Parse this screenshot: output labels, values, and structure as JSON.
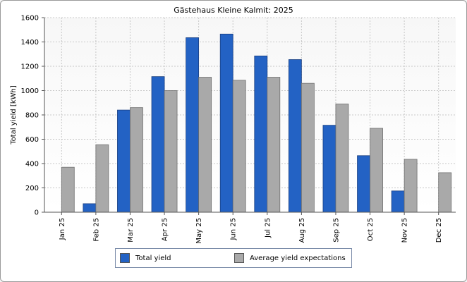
{
  "chart_data": {
    "type": "bar",
    "title": "Gästehaus Kleine Kalmit: 2025",
    "ylabel": "Total yield [kWh]",
    "xlabel": "",
    "ylim": [
      0,
      1600
    ],
    "yticks": [
      0,
      200,
      400,
      600,
      800,
      1000,
      1200,
      1400,
      1600
    ],
    "grid": true,
    "legend_position": "bottom",
    "categories": [
      "Jan 25",
      "Feb 25",
      "Mar 25",
      "Apr 25",
      "May 25",
      "Jun 25",
      "Jul 25",
      "Aug 25",
      "Sep 25",
      "Oct 25",
      "Nov 25",
      "Dec 25"
    ],
    "series": [
      {
        "name": "Total yield",
        "color": "#2362c4",
        "values": [
          null,
          70,
          840,
          1115,
          1435,
          1465,
          1285,
          1255,
          715,
          465,
          175,
          null
        ]
      },
      {
        "name": "Average yield expectations",
        "color": "#a9a9a9",
        "values": [
          370,
          555,
          860,
          1000,
          1110,
          1085,
          1110,
          1060,
          890,
          690,
          435,
          325
        ]
      }
    ]
  }
}
